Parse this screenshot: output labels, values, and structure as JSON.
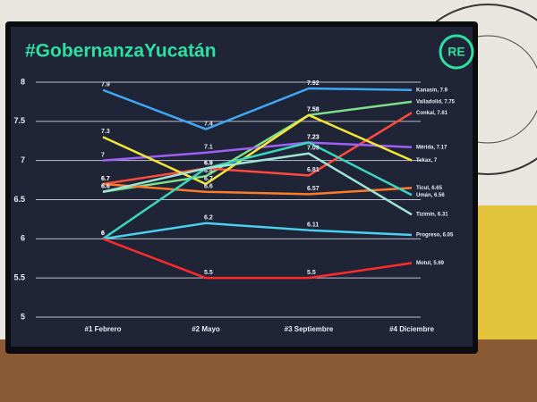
{
  "chart_data": {
    "type": "line",
    "title": "#GobernanzaYucatán",
    "logo": "RE",
    "categories": [
      "#1 Febrero",
      "#2 Mayo",
      "#3 Septiembre",
      "#4 Diciembre"
    ],
    "ylim": [
      5,
      8
    ],
    "yticks": [
      5,
      5.5,
      6,
      6.5,
      7,
      7.5,
      8
    ],
    "grid": true,
    "series": [
      {
        "name": "Kanasín, 7.9",
        "color": "#3fa9f5",
        "values": [
          7.9,
          7.4,
          7.92,
          7.9
        ]
      },
      {
        "name": "Valladolid, 7.75",
        "color": "#7ee08a",
        "values": [
          6.6,
          6.8,
          7.58,
          7.75
        ]
      },
      {
        "name": "Conkal, 7.61",
        "color": "#ff4a3d",
        "values": [
          6.7,
          6.9,
          6.81,
          7.61
        ]
      },
      {
        "name": "Mérida, 7.17",
        "color": "#a060f5",
        "values": [
          7,
          7.1,
          7.23,
          7.17
        ]
      },
      {
        "name": "Tekax, 7",
        "color": "#f5e63a",
        "values": [
          7.3,
          6.7,
          7.58,
          7
        ]
      },
      {
        "name": "Ticul, 6.65",
        "color": "#ff7a2a",
        "values": [
          6.7,
          6.6,
          6.57,
          6.65
        ]
      },
      {
        "name": "Umán, 6.56",
        "color": "#3ad6c0",
        "values": [
          6,
          6.9,
          7.23,
          6.56
        ]
      },
      {
        "name": "Tizimín, 6.31",
        "color": "#9fe6d8",
        "values": [
          6.6,
          6.9,
          7.09,
          6.31
        ]
      },
      {
        "name": "Progreso, 6.05",
        "color": "#4ad0f0",
        "values": [
          6,
          6.2,
          6.11,
          6.05
        ]
      },
      {
        "name": "Motul, 5.69",
        "color": "#ff2a2a",
        "values": [
          6,
          5.5,
          5.5,
          5.69
        ]
      }
    ]
  }
}
